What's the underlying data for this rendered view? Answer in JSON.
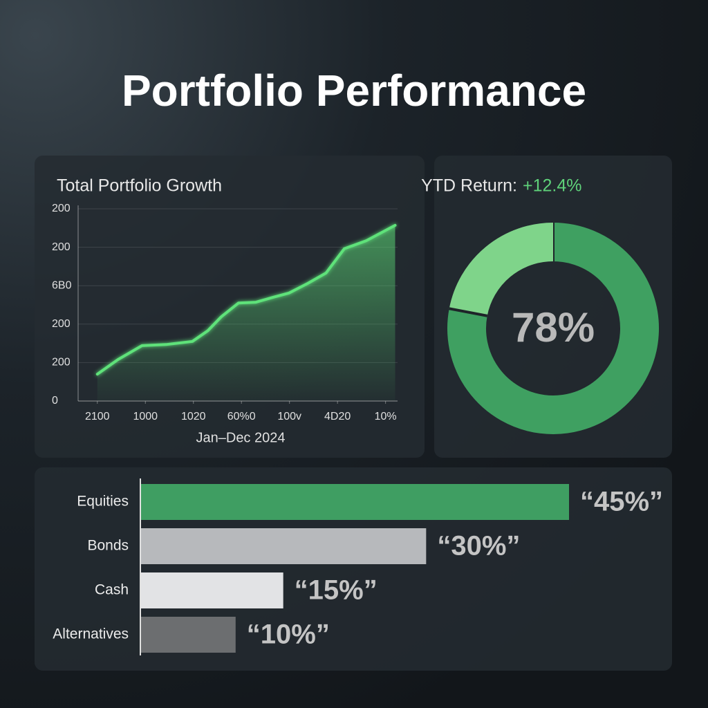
{
  "title": "Portfolio Performance",
  "chart_data": [
    {
      "type": "line",
      "title": "Total Portfolio Growth",
      "x_label": "Jan–Dec 2024",
      "x": [
        0,
        0.43,
        0.93,
        1.43,
        1.98,
        2.3,
        2.58,
        2.94,
        3.3,
        3.66,
        3.99,
        4.38,
        4.76,
        5.14,
        5.6,
        6.2
      ],
      "values": [
        0.7,
        1.08,
        1.44,
        1.47,
        1.55,
        1.83,
        2.19,
        2.55,
        2.57,
        2.7,
        2.81,
        3.06,
        3.33,
        3.96,
        4.17,
        4.57
      ],
      "color": "#5ee27a",
      "xlim": [
        -0.4,
        6.25
      ],
      "xticks": [
        {
          "value": 0,
          "label": "2100"
        },
        {
          "value": 1,
          "label": "1000"
        },
        {
          "value": 2,
          "label": "1020"
        },
        {
          "value": 3,
          "label": "60%0"
        },
        {
          "value": 4,
          "label": "100v"
        },
        {
          "value": 5,
          "label": "4D20"
        },
        {
          "value": 6,
          "label": "10%"
        }
      ],
      "ylim": [
        0,
        5
      ],
      "yticks": [
        0,
        {
          "value": 1,
          "label": "200"
        },
        {
          "value": 2,
          "label": "200"
        },
        {
          "value": 3,
          "label": "6B0"
        },
        {
          "value": 4,
          "label": "200"
        },
        {
          "value": 5,
          "label": "200"
        }
      ],
      "grid": true
    },
    {
      "type": "donut",
      "title": "YTD Return:",
      "title_highlight": "+12.4%",
      "center_label": "78%",
      "values": [
        78,
        22
      ],
      "colors": [
        "#3fa061",
        "#7fd48a"
      ]
    },
    {
      "type": "hbar",
      "categories": [
        "Equities",
        "Bonds",
        "Cash",
        "Alternatives"
      ],
      "values": [
        45,
        30,
        15,
        10
      ],
      "value_labels": [
        "“45%”",
        "“30%”",
        "“15%”",
        "“10%”"
      ],
      "colors": [
        "#3f9e62",
        "#b7b9bc",
        "#e2e3e5",
        "#6c6e70"
      ],
      "xlim": [
        0,
        45
      ]
    }
  ]
}
